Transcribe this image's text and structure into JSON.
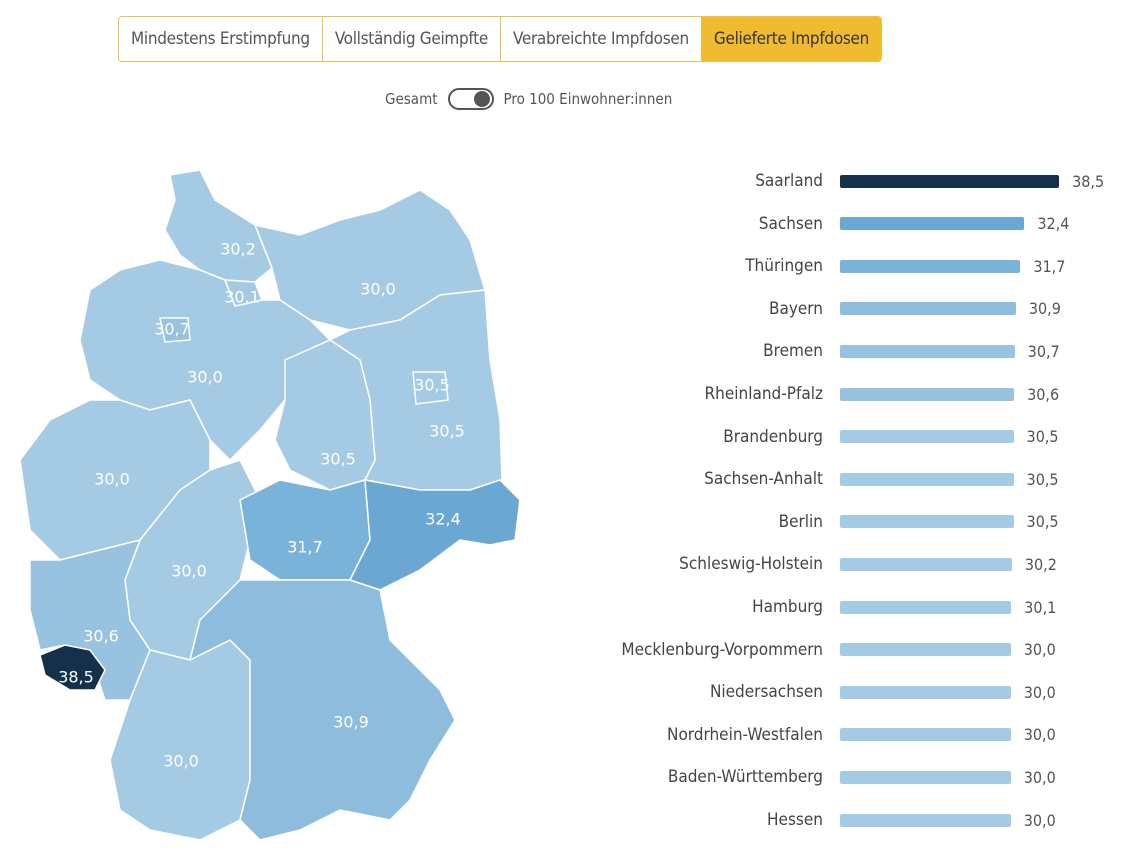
{
  "tabs": [
    {
      "label": "Mindestens Erstimpfung",
      "active": false
    },
    {
      "label": "Vollständig Geimpfte",
      "active": false
    },
    {
      "label": "Verabreichte Impfdosen",
      "active": false
    },
    {
      "label": "Gelieferte Impfdosen",
      "active": true
    }
  ],
  "toggle": {
    "left_label": "Gesamt",
    "right_label": "Pro 100 Einwohner:innen",
    "state": "right"
  },
  "colors": {
    "accent": "#f0bb2e",
    "max": "#15304a",
    "high": "#6aa8d3",
    "mid": "#7ab3d9",
    "low": "#a5cbe4"
  },
  "chart_data": {
    "type": "bar",
    "orientation": "horizontal",
    "unit": "Gelieferte Impfdosen pro 100 Einwohner:innen",
    "categories": [
      "Saarland",
      "Sachsen",
      "Thüringen",
      "Bayern",
      "Bremen",
      "Rheinland-Pfalz",
      "Brandenburg",
      "Sachsen-Anhalt",
      "Berlin",
      "Schleswig-Holstein",
      "Hamburg",
      "Mecklenburg-Vorpommern",
      "Niedersachsen",
      "Nordrhein-Westfalen",
      "Baden-Württemberg",
      "Hessen"
    ],
    "values": [
      38.5,
      32.4,
      31.7,
      30.9,
      30.7,
      30.6,
      30.5,
      30.5,
      30.5,
      30.2,
      30.1,
      30.0,
      30.0,
      30.0,
      30.0,
      30.0
    ],
    "labels": [
      "38,5",
      "32,4",
      "31,7",
      "30,9",
      "30,7",
      "30,6",
      "30,5",
      "30,5",
      "30,5",
      "30,2",
      "30,1",
      "30,0",
      "30,0",
      "30,0",
      "30,0",
      "30,0"
    ]
  }
}
